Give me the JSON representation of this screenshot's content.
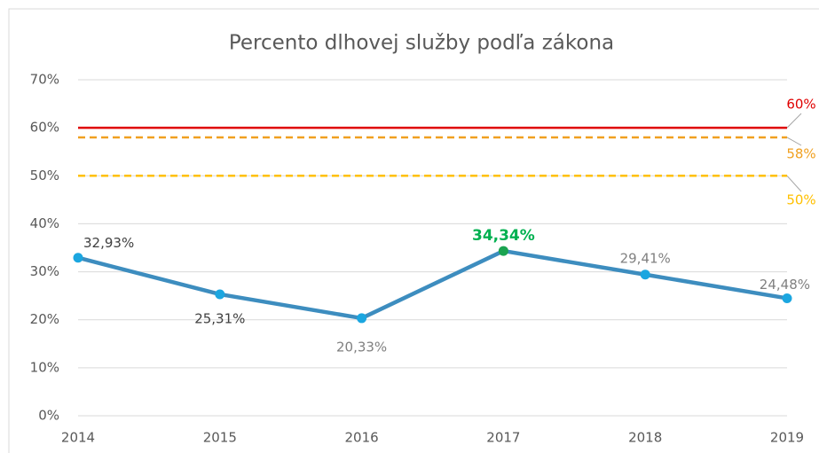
{
  "chart_data": {
    "type": "line",
    "title": "Percento dlhovej služby podľa zákona",
    "x": [
      2014,
      2015,
      2016,
      2017,
      2018,
      2019
    ],
    "xlim": [
      2014,
      2019
    ],
    "xticks": [
      2014,
      2015,
      2016,
      2017,
      2018,
      2019
    ],
    "ylim": [
      0,
      70
    ],
    "yticks": [
      {
        "value": 0,
        "label": "0%"
      },
      {
        "value": 10,
        "label": "10%"
      },
      {
        "value": 20,
        "label": "20%"
      },
      {
        "value": 30,
        "label": "30%"
      },
      {
        "value": 40,
        "label": "40%"
      },
      {
        "value": 50,
        "label": "50%"
      },
      {
        "value": 60,
        "label": "60%"
      },
      {
        "value": 70,
        "label": "70%"
      }
    ],
    "grid": true,
    "series": [
      {
        "name": "Percento dlhovej služby",
        "color": "#3d8dbf",
        "marker_color": "#1ba6e0",
        "values": [
          32.93,
          25.31,
          20.33,
          34.34,
          29.41,
          24.48
        ],
        "value_labels": [
          "32,93%",
          "25,31%",
          "20,33%",
          "34,34%",
          "29,41%",
          "24,48%"
        ],
        "value_label_colors": [
          "#404040",
          "#404040",
          "#808080",
          "#00b050",
          "#808080",
          "#808080"
        ],
        "highlight_index": 3,
        "highlight_color": "#1aa350"
      }
    ],
    "reference_lines": [
      {
        "value": 60,
        "label": "60%",
        "color": "#e00000",
        "dash": false
      },
      {
        "value": 58,
        "label": "58%",
        "color": "#f0a020",
        "dash": true
      },
      {
        "value": 50,
        "label": "50%",
        "color": "#ffc000",
        "dash": true
      }
    ]
  }
}
